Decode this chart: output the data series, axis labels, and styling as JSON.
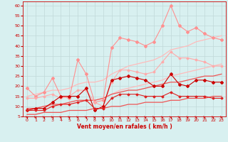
{
  "xlabel": "Vent moyen/en rafales ( km/h )",
  "background_color": "#d8f0f0",
  "grid_color": "#c0d8d8",
  "x": [
    0,
    1,
    2,
    3,
    4,
    5,
    6,
    7,
    8,
    9,
    10,
    11,
    12,
    13,
    14,
    15,
    16,
    17,
    18,
    19,
    20,
    21,
    22,
    23
  ],
  "series": [
    {
      "name": "rafales_max",
      "color": "#ff9090",
      "linewidth": 0.8,
      "marker": "D",
      "markersize": 2.0,
      "values": [
        19,
        15,
        17,
        24,
        15,
        14,
        33,
        26,
        12,
        13,
        39,
        44,
        43,
        42,
        40,
        42,
        50,
        60,
        50,
        47,
        49,
        46,
        44,
        43
      ]
    },
    {
      "name": "rafales_mean",
      "color": "#ffaaaa",
      "linewidth": 0.8,
      "marker": "D",
      "markersize": 1.5,
      "values": [
        14,
        14,
        15,
        16,
        14,
        15,
        18,
        18,
        12,
        10,
        22,
        28,
        28,
        27,
        26,
        27,
        32,
        37,
        34,
        34,
        33,
        32,
        30,
        30
      ]
    },
    {
      "name": "trend_rafales_upper",
      "color": "#ffbbbb",
      "linewidth": 0.9,
      "marker": null,
      "values": [
        15,
        16,
        17,
        18,
        18,
        19,
        21,
        22,
        22,
        23,
        26,
        28,
        30,
        31,
        32,
        33,
        35,
        38,
        39,
        40,
        42,
        43,
        44,
        45
      ]
    },
    {
      "name": "trend_rafales_lower",
      "color": "#ffbbbb",
      "linewidth": 0.9,
      "marker": null,
      "values": [
        8,
        9,
        10,
        10,
        11,
        11,
        12,
        13,
        13,
        14,
        16,
        18,
        19,
        20,
        21,
        22,
        23,
        25,
        26,
        27,
        28,
        29,
        30,
        31
      ]
    },
    {
      "name": "vent_max",
      "color": "#cc0000",
      "linewidth": 0.8,
      "marker": "D",
      "markersize": 2.0,
      "values": [
        8,
        9,
        9,
        12,
        15,
        15,
        15,
        19,
        8,
        10,
        23,
        24,
        25,
        24,
        23,
        20,
        20,
        26,
        21,
        20,
        23,
        23,
        22,
        22
      ]
    },
    {
      "name": "vent_mean",
      "color": "#dd2222",
      "linewidth": 0.8,
      "marker": "D",
      "markersize": 1.5,
      "values": [
        8,
        8,
        8,
        10,
        11,
        11,
        12,
        13,
        9,
        9,
        14,
        16,
        16,
        16,
        15,
        15,
        15,
        17,
        15,
        15,
        15,
        15,
        14,
        14
      ]
    },
    {
      "name": "trend_vent_upper",
      "color": "#ee5555",
      "linewidth": 0.9,
      "marker": null,
      "values": [
        9,
        9,
        10,
        11,
        11,
        12,
        13,
        13,
        13,
        14,
        16,
        17,
        18,
        18,
        19,
        20,
        21,
        22,
        22,
        23,
        24,
        25,
        25,
        26
      ]
    },
    {
      "name": "trend_vent_lower",
      "color": "#ee5555",
      "linewidth": 0.9,
      "marker": null,
      "values": [
        6,
        6,
        7,
        7,
        7,
        8,
        8,
        8,
        9,
        9,
        10,
        10,
        11,
        11,
        12,
        12,
        12,
        13,
        13,
        14,
        14,
        14,
        15,
        15
      ]
    }
  ],
  "ylim": [
    5,
    62
  ],
  "yticks": [
    5,
    10,
    15,
    20,
    25,
    30,
    35,
    40,
    45,
    50,
    55,
    60
  ],
  "xlim": [
    -0.5,
    23.5
  ],
  "xticks": [
    0,
    1,
    2,
    3,
    4,
    5,
    6,
    7,
    8,
    9,
    10,
    11,
    12,
    13,
    14,
    15,
    16,
    17,
    18,
    19,
    20,
    21,
    22,
    23
  ],
  "axis_fontsize": 5.5,
  "tick_fontsize": 4.5,
  "arrow_angles": [
    90,
    90,
    80,
    90,
    90,
    90,
    80,
    70,
    60,
    70,
    80,
    70,
    60,
    90,
    90,
    90,
    80,
    70,
    80,
    90,
    100,
    100,
    110,
    110
  ]
}
